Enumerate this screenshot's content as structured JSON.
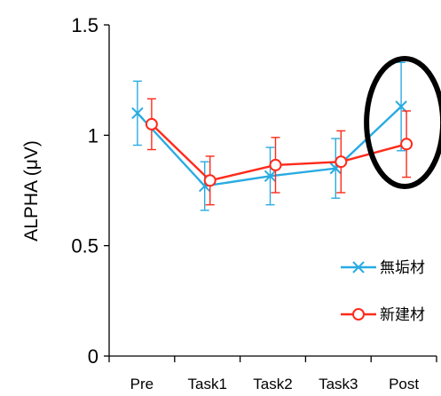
{
  "chart_data": {
    "type": "line",
    "title": "",
    "xlabel": "",
    "ylabel": "ALPHA (μV)",
    "ylim": [
      0,
      1.5
    ],
    "yticks": [
      "0",
      "0.5",
      "1",
      "1.5"
    ],
    "categories": [
      "Pre",
      "Task1",
      "Task2",
      "Task3",
      "Post"
    ],
    "grid": false,
    "legend_position": "bottom-right",
    "series": [
      {
        "name": "無垢材",
        "color": "#29abe2",
        "marker": "x",
        "values": [
          1.1,
          0.77,
          0.815,
          0.85,
          1.13
        ],
        "error": [
          0.145,
          0.11,
          0.13,
          0.135,
          0.2
        ]
      },
      {
        "name": "新建材",
        "color": "#ff2a1a",
        "marker": "circle",
        "values": [
          1.05,
          0.795,
          0.865,
          0.88,
          0.96
        ],
        "error": [
          0.115,
          0.11,
          0.125,
          0.14,
          0.15
        ]
      }
    ],
    "annotations": [
      {
        "type": "ellipse",
        "target_category": "Post",
        "color": "#000000"
      }
    ]
  }
}
